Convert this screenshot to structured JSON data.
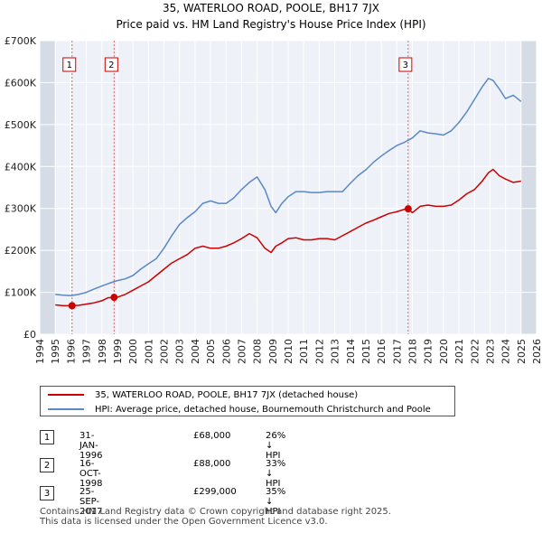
{
  "chart_data": {
    "type": "line",
    "title": "35, WATERLOO ROAD, POOLE, BH17 7JX",
    "subtitle": "Price paid vs. HM Land Registry's House Price Index (HPI)",
    "xlabel": "",
    "ylabel": "",
    "xlim": [
      1994,
      2026
    ],
    "ylim": [
      0,
      700000
    ],
    "grid": true,
    "x_ticks": [
      1994,
      1995,
      1996,
      1997,
      1998,
      1999,
      2000,
      2001,
      2002,
      2003,
      2004,
      2005,
      2006,
      2007,
      2008,
      2009,
      2010,
      2011,
      2012,
      2013,
      2014,
      2015,
      2016,
      2017,
      2018,
      2019,
      2020,
      2021,
      2022,
      2023,
      2024,
      2025,
      2026
    ],
    "y_ticks": [
      0,
      100000,
      200000,
      300000,
      400000,
      500000,
      600000,
      700000
    ],
    "y_tick_labels": [
      "£0",
      "£100K",
      "£200K",
      "£300K",
      "£400K",
      "£500K",
      "£600K",
      "£700K"
    ],
    "shaded_regions": [
      [
        1994.0,
        1995.0
      ],
      [
        2025.0,
        2026.0
      ]
    ],
    "series": [
      {
        "name": "35, WATERLOO ROAD, POOLE, BH17 7JX (detached house)",
        "color": "#cc0000",
        "x": [
          1995.0,
          1995.5,
          1996.08,
          1996.5,
          1997.0,
          1997.5,
          1998.0,
          1998.4,
          1998.79,
          1999.0,
          1999.5,
          2000.0,
          2000.5,
          2001.0,
          2001.5,
          2002.0,
          2002.5,
          2003.0,
          2003.5,
          2004.0,
          2004.5,
          2005.0,
          2005.5,
          2006.0,
          2006.5,
          2007.0,
          2007.5,
          2008.0,
          2008.5,
          2008.9,
          2009.2,
          2009.6,
          2010.0,
          2010.5,
          2011.0,
          2011.5,
          2012.0,
          2012.5,
          2013.0,
          2013.5,
          2014.0,
          2014.5,
          2015.0,
          2015.5,
          2016.0,
          2016.5,
          2017.0,
          2017.5,
          2017.73,
          2018.0,
          2018.5,
          2019.0,
          2019.5,
          2020.0,
          2020.5,
          2021.0,
          2021.5,
          2022.0,
          2022.5,
          2022.9,
          2023.2,
          2023.6,
          2024.0,
          2024.5,
          2025.0
        ],
        "values": [
          70000,
          68000,
          68000,
          69000,
          72000,
          75000,
          80000,
          87000,
          88000,
          88000,
          95000,
          105000,
          115000,
          125000,
          140000,
          155000,
          170000,
          180000,
          190000,
          205000,
          210000,
          205000,
          205000,
          210000,
          218000,
          228000,
          240000,
          230000,
          205000,
          195000,
          210000,
          218000,
          228000,
          230000,
          225000,
          225000,
          228000,
          228000,
          225000,
          235000,
          245000,
          255000,
          265000,
          272000,
          280000,
          288000,
          292000,
          298000,
          299000,
          290000,
          305000,
          308000,
          305000,
          305000,
          308000,
          320000,
          335000,
          345000,
          365000,
          385000,
          393000,
          378000,
          370000,
          362000,
          365000
        ]
      },
      {
        "name": "HPI: Average price, detached house, Bournemouth Christchurch and Poole",
        "color": "#5b87c5",
        "x": [
          1995.0,
          1995.5,
          1996.0,
          1996.5,
          1997.0,
          1997.5,
          1998.0,
          1998.5,
          1999.0,
          1999.5,
          2000.0,
          2000.5,
          2001.0,
          2001.5,
          2002.0,
          2002.5,
          2003.0,
          2003.5,
          2004.0,
          2004.5,
          2005.0,
          2005.5,
          2006.0,
          2006.5,
          2007.0,
          2007.5,
          2008.0,
          2008.5,
          2008.9,
          2009.2,
          2009.6,
          2010.0,
          2010.5,
          2011.0,
          2011.5,
          2012.0,
          2012.5,
          2013.0,
          2013.5,
          2014.0,
          2014.5,
          2015.0,
          2015.5,
          2016.0,
          2016.5,
          2017.0,
          2017.5,
          2018.0,
          2018.5,
          2019.0,
          2019.5,
          2020.0,
          2020.5,
          2021.0,
          2021.5,
          2022.0,
          2022.5,
          2022.9,
          2023.2,
          2023.6,
          2024.0,
          2024.5,
          2025.0
        ],
        "values": [
          95000,
          93000,
          92000,
          95000,
          100000,
          108000,
          115000,
          122000,
          128000,
          132000,
          140000,
          155000,
          168000,
          180000,
          205000,
          235000,
          262000,
          278000,
          292000,
          312000,
          318000,
          312000,
          312000,
          325000,
          345000,
          362000,
          375000,
          345000,
          305000,
          290000,
          312000,
          328000,
          340000,
          340000,
          338000,
          338000,
          340000,
          340000,
          340000,
          360000,
          378000,
          392000,
          410000,
          425000,
          438000,
          450000,
          458000,
          468000,
          485000,
          480000,
          478000,
          475000,
          485000,
          505000,
          530000,
          560000,
          590000,
          610000,
          605000,
          585000,
          562000,
          570000,
          555000
        ]
      }
    ],
    "markers": [
      {
        "label": "1",
        "x": 1996.08,
        "value": 68000
      },
      {
        "label": "2",
        "x": 1998.79,
        "value": 88000
      },
      {
        "label": "3",
        "x": 2017.73,
        "value": 299000
      }
    ]
  },
  "transactions": [
    {
      "num": "1",
      "date": "31-JAN-1996",
      "price": "£68,000",
      "hpi": "26% ↓ HPI"
    },
    {
      "num": "2",
      "date": "16-OCT-1998",
      "price": "£88,000",
      "hpi": "33% ↓ HPI"
    },
    {
      "num": "3",
      "date": "25-SEP-2017",
      "price": "£299,000",
      "hpi": "35% ↓ HPI"
    }
  ],
  "footer": {
    "line1": "Contains HM Land Registry data © Crown copyright and database right 2025.",
    "line2": "This data is licensed under the Open Government Licence v3.0."
  }
}
